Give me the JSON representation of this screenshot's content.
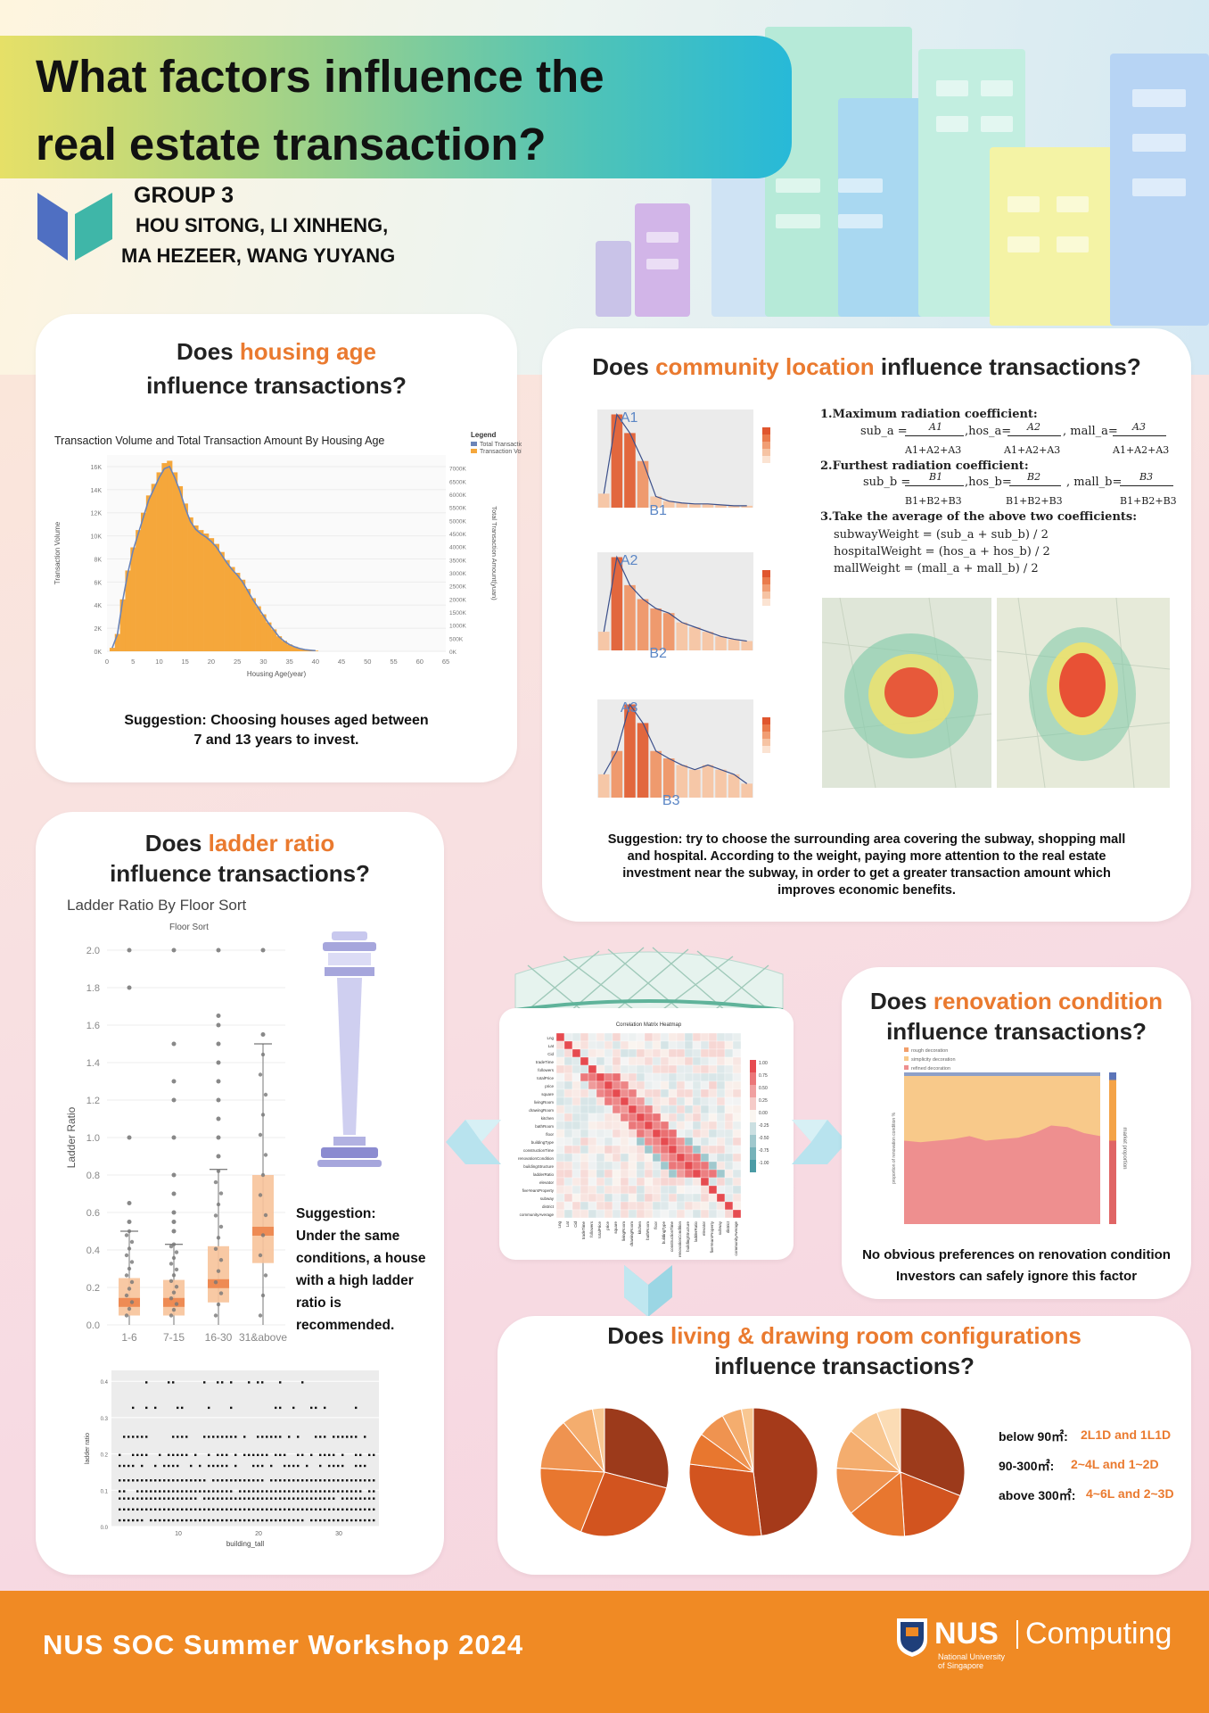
{
  "poster": {
    "title_line1": "What factors influence the",
    "title_line2": "real estate transaction?",
    "group": "GROUP 3",
    "members_line1": "HOU SITONG, LI XINHENG,",
    "members_line2": "MA HEZEER, WANG YUYANG",
    "footer": "NUS SOC Summer Workshop 2024",
    "logo_nus": "NUS",
    "logo_computing": "Computing",
    "logo_sub1": "National University",
    "logo_sub2": "of Singapore"
  },
  "age": {
    "q_pre": "Does ",
    "q_hl": "housing age",
    "q_line2": "influence transactions?",
    "suggestion1": "Suggestion: Choosing houses aged between",
    "suggestion2": "7 and 13 years to invest."
  },
  "location": {
    "q_pre": "Does ",
    "q_hl": "community location",
    "q_post": " influence transactions?",
    "step1": "1.Maximum radiation coefficient:",
    "step2": "2.Furthest radiation coefficient:",
    "step3": "3.Take the average of the above two coefficients:",
    "w1": "subwayWeight = (sub_a + sub_b) / 2",
    "w2": "hospitalWeight = (hos_a + hos_b) / 2",
    "w3": "mallWeight = (mall_a + mall_b) / 2",
    "sub_a": "sub_a =",
    "hos_a": ",hos_a=",
    "mall_a": ", mall_a=",
    "sub_b": "sub_b =",
    "hos_b": ",hos_b=",
    "mall_b": ", mall_b=",
    "A1": "A1",
    "A2": "A2",
    "A3": "A3",
    "B1": "B1",
    "B2": "B2",
    "B3": "B3",
    "denA": "A1+A2+A3",
    "denB": "B1+B2+B3",
    "s1": "Suggestion: try to choose the surrounding area covering the subway, shopping mall",
    "s2": "and hospital. According to the weight,  paying more attention to the real estate",
    "s3": "investment near the subway, in order to get a greater transaction amount which",
    "s4": "improves economic benefits."
  },
  "ladder": {
    "q_pre": "Does ",
    "q_hl": "ladder ratio",
    "q_line2": "influence transactions?",
    "suggestion": [
      "Suggestion:",
      "Under the same",
      "conditions, a house",
      "with a high ladder",
      "ratio is",
      "recommended."
    ]
  },
  "renovation": {
    "q_pre": "Does ",
    "q_hl": "renovation condition",
    "q_line2": "influence transactions?",
    "s1": "No obvious preferences on renovation condition",
    "s2": "Investors can safely ignore this factor"
  },
  "rooms": {
    "q_pre": "Does ",
    "q_hl": "living & drawing room configurations",
    "q_line2": "influence transactions?",
    "legend": [
      {
        "label": "below 90㎡:",
        "value": "2L1D and 1L1D"
      },
      {
        "label": "90-300㎡:",
        "value": "2~4L and 1~2D"
      },
      {
        "label": "above 300㎡:",
        "value": "4~6L and 2~3D"
      }
    ]
  },
  "chart_data": [
    {
      "type": "bar",
      "title": "Transaction Volume and Total Transaction Amount By Housing Age",
      "xlabel": "Housing Age(year)",
      "ylabel": "Transaction Volume",
      "y2label": "Total Transaction Amount(yuan)",
      "legend_title": "Legend",
      "legend": [
        "Total Transaction Amount",
        "Transaction Volume"
      ],
      "x_ticks": [
        "0",
        "5",
        "10",
        "15",
        "20",
        "25",
        "30",
        "35",
        "40",
        "45",
        "50",
        "55",
        "60",
        "65"
      ],
      "y_ticks": [
        "0K",
        "2K",
        "4K",
        "6K",
        "8K",
        "10K",
        "12K",
        "14K",
        "16K"
      ],
      "y2_ticks": [
        "0K",
        "500K",
        "1000K",
        "1500K",
        "2000K",
        "2500K",
        "3000K",
        "3500K",
        "4000K",
        "4500K",
        "5000K",
        "5500K",
        "6000K",
        "6500K",
        "7000K"
      ],
      "ylim": [
        0,
        17000
      ],
      "x": [
        1,
        2,
        3,
        4,
        5,
        6,
        7,
        8,
        9,
        10,
        11,
        12,
        13,
        14,
        15,
        16,
        17,
        18,
        19,
        20,
        21,
        22,
        23,
        24,
        25,
        26,
        27,
        28,
        29,
        30,
        31,
        32,
        33,
        34,
        35,
        36,
        37,
        38,
        39,
        40
      ],
      "values": [
        300,
        1500,
        4500,
        7000,
        9000,
        10500,
        12000,
        13500,
        14500,
        15500,
        16300,
        16500,
        15500,
        14300,
        12800,
        11600,
        10900,
        10500,
        10200,
        9800,
        9300,
        8600,
        7900,
        7300,
        6800,
        6200,
        5400,
        4600,
        3900,
        3200,
        2500,
        1900,
        1300,
        900,
        600,
        400,
        250,
        150,
        100,
        60
      ]
    },
    {
      "type": "box",
      "title": "Ladder Ratio By Floor Sort",
      "subtitle": "Floor Sort",
      "ylabel": "Ladder Ratio",
      "categories": [
        "1-6",
        "7-15",
        "16-30",
        "31&above"
      ],
      "y_ticks": [
        "0.0",
        "0.2",
        "0.4",
        "0.6",
        "0.8",
        "1.0",
        "1.2",
        "1.4",
        "1.6",
        "1.8",
        "2.0"
      ],
      "ylim": [
        0,
        2.0
      ],
      "q1": [
        0.05,
        0.05,
        0.12,
        0.33
      ],
      "median": [
        0.12,
        0.12,
        0.22,
        0.5
      ],
      "q3": [
        0.25,
        0.24,
        0.42,
        0.8
      ],
      "whisker_high": [
        0.5,
        0.43,
        0.83,
        1.5
      ]
    },
    {
      "type": "scatter",
      "xlabel": "building_tall",
      "ylabel": "ladder ratio",
      "x_ticks": [
        "10",
        "20",
        "30"
      ],
      "y_ticks": [
        "0.0",
        "0.1",
        "0.2",
        "0.3",
        "0.4"
      ]
    },
    {
      "type": "heatmap",
      "title": "Correlation Matrix Heatmap",
      "rows": [
        "Lng",
        "Lat",
        "Cid",
        "tradeTime",
        "followers",
        "totalPrice",
        "price",
        "square",
        "livingRoom",
        "drawingRoom",
        "kitchen",
        "bathRoom",
        "floor",
        "buildingType",
        "constructionTime",
        "renovationCondition",
        "buildingStructure",
        "ladderRatio",
        "elevator",
        "fiveYearsProperty",
        "subway",
        "district",
        "communityAverage"
      ],
      "colorbar": [
        "1.00",
        "0.75",
        "0.50",
        "0.25",
        "0.00",
        "-0.25",
        "-0.50",
        "-0.75",
        "-1.00"
      ]
    },
    {
      "type": "area",
      "legend": [
        "rough decoration",
        "simplicity decoration",
        "refined decoration"
      ],
      "ylabel": "proportion of renovation condition %",
      "y2label": "market proportion"
    }
  ]
}
